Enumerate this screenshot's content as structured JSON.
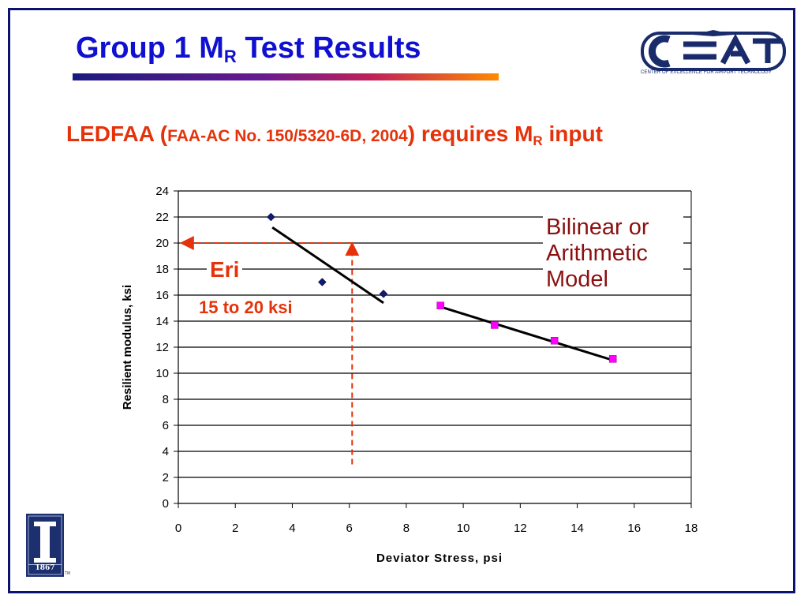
{
  "slide": {
    "title_main": "Group 1 M",
    "title_sub": "R",
    "title_end": " Test Results",
    "subtitle_part1": "LEDFAA (",
    "subtitle_small": "FAA-AC No. 150/5320-6D, 2004",
    "subtitle_part2": ") requires M",
    "subtitle_sub": "R",
    "subtitle_part3": " input",
    "logo_caption": "CENTER OF EXCELLENCE FOR AIRPORT TECHNOLOGY",
    "uiuc_year": "1867",
    "uiuc_tm": "TM"
  },
  "annotations": {
    "model_line1": "Bilinear or",
    "model_line2": "Arithmetic",
    "model_line3": "Model",
    "eri": "Eri",
    "range": "15 to 20 ksi"
  },
  "colors": {
    "title": "#1010d0",
    "accent": "#e6320a",
    "model_text": "#8b1010",
    "series1": "#0c1a7a",
    "series2": "#ff00ff"
  },
  "chart_data": {
    "type": "scatter",
    "title": "",
    "xlabel": "Deviator Stress, psi",
    "ylabel": "Resilient modulus, ksi",
    "xlim": [
      0,
      18
    ],
    "ylim": [
      0,
      24
    ],
    "xticks": [
      0,
      2,
      4,
      6,
      8,
      10,
      12,
      14,
      16,
      18
    ],
    "yticks": [
      0,
      2,
      4,
      6,
      8,
      10,
      12,
      14,
      16,
      18,
      20,
      22,
      24
    ],
    "grid": "horizontal",
    "series": [
      {
        "marker": "diamond",
        "color": "#0c1a7a",
        "x": [
          3.25,
          5.05,
          7.2
        ],
        "y": [
          22.0,
          17.0,
          16.1
        ]
      },
      {
        "marker": "square",
        "color": "#ff00ff",
        "x": [
          9.2,
          11.1,
          13.2,
          15.25
        ],
        "y": [
          15.2,
          13.7,
          12.5,
          11.1
        ]
      }
    ],
    "fit_lines": [
      {
        "x": [
          3.3,
          7.2
        ],
        "y": [
          21.2,
          15.4
        ]
      },
      {
        "x": [
          9.2,
          15.25
        ],
        "y": [
          15.1,
          11.0
        ]
      }
    ],
    "reference_lines": [
      {
        "style": "dashed",
        "x": [
          6.1,
          6.1
        ],
        "y": [
          3.0,
          20.0
        ],
        "arrow": "end"
      },
      {
        "style": "dashed",
        "x": [
          6.1,
          0.1
        ],
        "y": [
          20.0,
          20.0
        ],
        "arrow": "end"
      }
    ]
  }
}
